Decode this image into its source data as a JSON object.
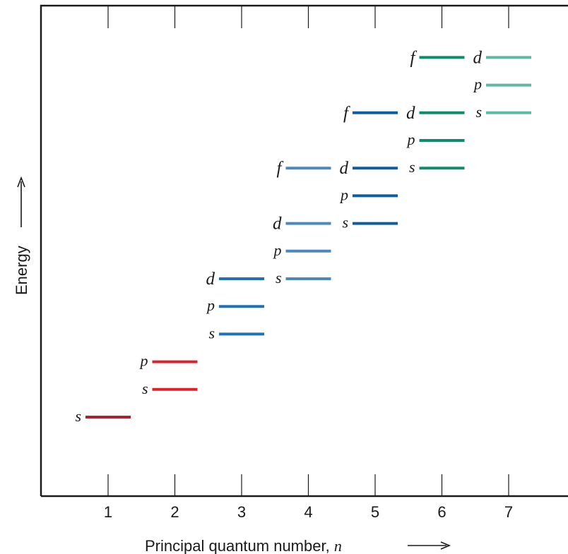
{
  "colors": {
    "n1": "#b01f2e",
    "n2": "#e0212c",
    "n3": "#1f72b8",
    "n4": "#4a88bf",
    "n5": "#0d5da0",
    "n6": "#0e8c6e",
    "n7": "#5fb8a5",
    "axis": "#1a1a1a"
  },
  "axes": {
    "x_label": "Principal quantum number, ",
    "x_var": "n",
    "y_label": "Energy",
    "ticks": [
      "1",
      "2",
      "3",
      "4",
      "5",
      "6",
      "7"
    ]
  },
  "levels": [
    {
      "n": 1,
      "sub": "s",
      "energy_rank": 1
    },
    {
      "n": 2,
      "sub": "s",
      "energy_rank": 2
    },
    {
      "n": 2,
      "sub": "p",
      "energy_rank": 3
    },
    {
      "n": 3,
      "sub": "s",
      "energy_rank": 4
    },
    {
      "n": 3,
      "sub": "p",
      "energy_rank": 5
    },
    {
      "n": 3,
      "sub": "d",
      "energy_rank": 6
    },
    {
      "n": 4,
      "sub": "s",
      "energy_rank": 6
    },
    {
      "n": 4,
      "sub": "p",
      "energy_rank": 7
    },
    {
      "n": 4,
      "sub": "d",
      "energy_rank": 8
    },
    {
      "n": 5,
      "sub": "s",
      "energy_rank": 8
    },
    {
      "n": 5,
      "sub": "p",
      "energy_rank": 9
    },
    {
      "n": 4,
      "sub": "f",
      "energy_rank": 10
    },
    {
      "n": 5,
      "sub": "d",
      "energy_rank": 10
    },
    {
      "n": 6,
      "sub": "s",
      "energy_rank": 10
    },
    {
      "n": 6,
      "sub": "p",
      "energy_rank": 11
    },
    {
      "n": 5,
      "sub": "f",
      "energy_rank": 12
    },
    {
      "n": 6,
      "sub": "d",
      "energy_rank": 12
    },
    {
      "n": 7,
      "sub": "s",
      "energy_rank": 12
    },
    {
      "n": 7,
      "sub": "p",
      "energy_rank": 13
    },
    {
      "n": 6,
      "sub": "f",
      "energy_rank": 14
    },
    {
      "n": 7,
      "sub": "d",
      "energy_rank": 14
    }
  ]
}
